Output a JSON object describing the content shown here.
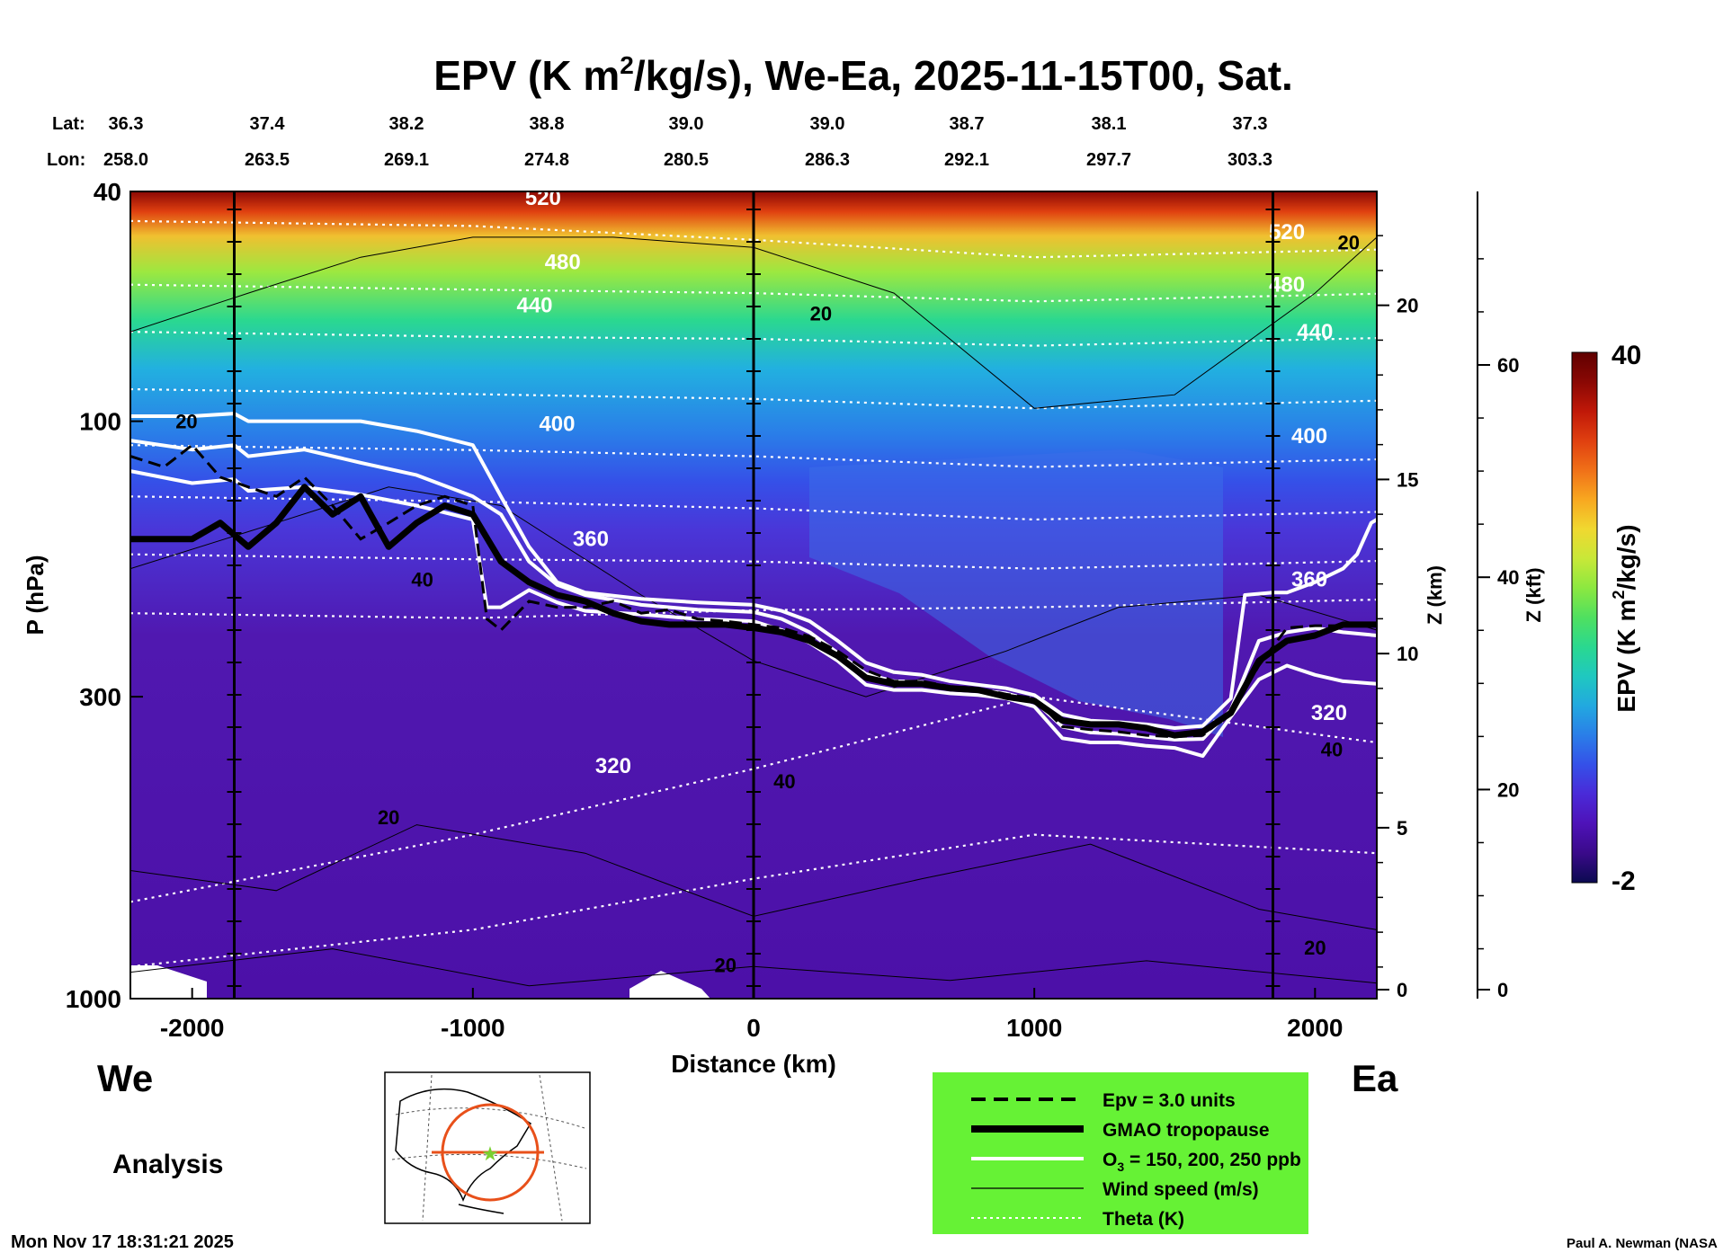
{
  "header": {
    "title_main": "EPV (K m",
    "title_sup": "2",
    "title_rest": "/kg/s), We-Ea, 2025-11-15T00, Sat.",
    "lat_label": "Lat:",
    "lon_label": "Lon:",
    "lat_values": [
      "36.3",
      "37.4",
      "38.2",
      "38.8",
      "39.0",
      "39.0",
      "38.7",
      "38.1",
      "37.3"
    ],
    "lon_values": [
      "258.0",
      "263.5",
      "269.1",
      "274.8",
      "280.5",
      "286.3",
      "292.1",
      "297.7",
      "303.3"
    ]
  },
  "footer": {
    "west_label": "We",
    "east_label": "Ea",
    "analysis_label": "Analysis",
    "timestamp": "Mon Nov 17 18:31:21 2025",
    "credit": "Paul A. Newman (NASA"
  },
  "legend": {
    "items": [
      {
        "label": "Epv = 3.0 units",
        "style": "dashed",
        "color": "#000000"
      },
      {
        "label": "GMAO tropopause",
        "style": "thick",
        "color": "#000000"
      },
      {
        "label": "O",
        "label_sub": "3",
        "label_rest": " = 150, 200, 250 ppb",
        "style": "white",
        "color": "#ffffff"
      },
      {
        "label": "Wind speed (m/s)",
        "style": "thin",
        "color": "#000000"
      },
      {
        "label": "Theta (K)",
        "style": "dotted",
        "color": "#ffffff"
      }
    ],
    "background": "#66f235"
  },
  "colorbar": {
    "label_main": "EPV (K m",
    "label_sup": "2",
    "label_rest": "/kg/s)",
    "max_label": "40",
    "min_label": "-2",
    "colors": [
      "#0b0a50",
      "#3a0a8a",
      "#4e12b8",
      "#4a2ad8",
      "#3550e8",
      "#2a7ee8",
      "#22a8e0",
      "#1fc8c0",
      "#2ad890",
      "#4fe060",
      "#8ce840",
      "#c8e838",
      "#f0d830",
      "#f8a820",
      "#f07018",
      "#e04010",
      "#c01808",
      "#8a0804",
      "#600000"
    ]
  },
  "chart_data": {
    "type": "heatmap",
    "title": "EPV (K m2/kg/s), We-Ea, 2025-11-15T00, Sat.",
    "xlabel": "Distance (km)",
    "ylabel": "P (hPa)",
    "y2label": "Z (km)",
    "y3label": "Z (kft)",
    "xlim": [
      -2220,
      2220
    ],
    "ylim": [
      1000,
      40
    ],
    "y_scale": "log",
    "x_ticks": [
      -2000,
      -1000,
      0,
      1000,
      2000
    ],
    "x_tick_labels": [
      "-2000",
      "-1000",
      "0",
      "1000",
      "2000"
    ],
    "y_ticks": [
      40,
      100,
      300,
      1000
    ],
    "y_tick_labels": [
      "40",
      "100",
      "300",
      "1000"
    ],
    "z_km_ticks": [
      0,
      5,
      10,
      15,
      20
    ],
    "z_km_tick_labels": [
      "0",
      "5",
      "10",
      "15",
      "20"
    ],
    "z_kft_ticks": [
      0,
      20,
      40,
      60
    ],
    "z_kft_tick_labels": [
      "0",
      "20",
      "40",
      "60"
    ],
    "colorbar_range": [
      -2,
      40
    ],
    "section_lines_km": [
      -1850,
      0,
      1850
    ],
    "tropopause": {
      "name": "GMAO tropopause",
      "x": [
        -2220,
        -2000,
        -1900,
        -1800,
        -1700,
        -1600,
        -1500,
        -1400,
        -1300,
        -1200,
        -1100,
        -1000,
        -900,
        -800,
        -700,
        -600,
        -500,
        -400,
        -300,
        -200,
        -100,
        0,
        100,
        200,
        300,
        400,
        500,
        600,
        700,
        800,
        900,
        1000,
        1100,
        1200,
        1300,
        1400,
        1500,
        1600,
        1700,
        1800,
        1900,
        2000,
        2100,
        2220
      ],
      "p": [
        160,
        160,
        150,
        165,
        150,
        130,
        145,
        135,
        165,
        150,
        140,
        145,
        175,
        190,
        200,
        205,
        215,
        222,
        225,
        225,
        225,
        228,
        232,
        240,
        255,
        278,
        285,
        285,
        290,
        292,
        300,
        305,
        330,
        335,
        335,
        340,
        350,
        345,
        320,
        260,
        240,
        235,
        225,
        225
      ]
    },
    "epv_3_units": {
      "name": "Epv = 3.0 units",
      "x": [
        -2220,
        -2100,
        -2000,
        -1900,
        -1800,
        -1700,
        -1600,
        -1500,
        -1400,
        -1300,
        -1200,
        -1100,
        -1000,
        -950,
        -900,
        -800,
        -700,
        -600,
        -500,
        -400,
        -300,
        -200,
        -100,
        0,
        100,
        200,
        300,
        400,
        500,
        600,
        700,
        800,
        900,
        1000,
        1100,
        1200,
        1300,
        1400,
        1500,
        1600,
        1700,
        1800,
        1900,
        2000,
        2100,
        2220
      ],
      "p": [
        115,
        120,
        110,
        125,
        130,
        135,
        125,
        140,
        160,
        150,
        140,
        135,
        140,
        220,
        230,
        205,
        210,
        210,
        205,
        215,
        212,
        220,
        222,
        225,
        228,
        236,
        250,
        270,
        282,
        282,
        288,
        290,
        297,
        302,
        338,
        342,
        345,
        350,
        352,
        350,
        320,
        265,
        228,
        226,
        226,
        226
      ]
    },
    "ozone_150_ppb": {
      "name": "O3 = 150 ppb",
      "x": [
        -2220,
        -2000,
        -1850,
        -1800,
        -1600,
        -1400,
        -1200,
        -1000,
        -900,
        -800,
        -700,
        -600,
        -400,
        -200,
        0,
        100,
        200,
        300,
        400,
        500,
        600,
        700,
        800,
        900,
        1000,
        1100,
        1200,
        1300,
        1400,
        1500,
        1600,
        1700,
        1750,
        1850,
        1900,
        2000,
        2100,
        2150,
        2200,
        2220
      ],
      "p": [
        98,
        98,
        97,
        100,
        100,
        100,
        104,
        110,
        135,
        165,
        190,
        198,
        203,
        206,
        208,
        213,
        222,
        240,
        262,
        272,
        275,
        282,
        286,
        290,
        298,
        322,
        330,
        332,
        335,
        340,
        337,
        302,
        200,
        198,
        198,
        190,
        180,
        170,
        150,
        148
      ]
    },
    "ozone_200_ppb": {
      "name": "O3 = 200 ppb",
      "x": [
        -2220,
        -2000,
        -1850,
        -1800,
        -1600,
        -1400,
        -1200,
        -1000,
        -900,
        -800,
        -700,
        -600,
        -400,
        -200,
        0,
        100,
        200,
        300,
        400,
        500,
        600,
        700,
        800,
        900,
        1000,
        1100,
        1200,
        1300,
        1400,
        1500,
        1600,
        1700,
        1800,
        1900,
        2000,
        2100,
        2220
      ],
      "p": [
        108,
        112,
        110,
        115,
        112,
        118,
        124,
        135,
        145,
        175,
        192,
        200,
        208,
        212,
        214,
        220,
        232,
        252,
        274,
        282,
        283,
        290,
        292,
        296,
        305,
        338,
        346,
        348,
        352,
        356,
        355,
        316,
        240,
        232,
        228,
        232,
        235
      ]
    },
    "ozone_250_ppb": {
      "name": "O3 = 250 ppb",
      "x": [
        -2220,
        -2000,
        -1850,
        -1800,
        -1600,
        -1400,
        -1200,
        -1000,
        -950,
        -900,
        -800,
        -700,
        -600,
        -400,
        -200,
        0,
        100,
        200,
        300,
        400,
        500,
        600,
        700,
        800,
        900,
        1000,
        1100,
        1200,
        1300,
        1400,
        1500,
        1600,
        1700,
        1800,
        1900,
        2000,
        2100,
        2220
      ],
      "p": [
        122,
        128,
        126,
        132,
        130,
        134,
        140,
        148,
        210,
        210,
        196,
        206,
        213,
        216,
        220,
        222,
        230,
        242,
        260,
        286,
        292,
        292,
        296,
        298,
        302,
        312,
        354,
        360,
        360,
        365,
        368,
        380,
        325,
        280,
        265,
        275,
        282,
        285
      ]
    },
    "theta_labels": [
      {
        "value": "520",
        "x": -750,
        "p": 41
      },
      {
        "value": "480",
        "x": -680,
        "p": 53
      },
      {
        "value": "440",
        "x": -780,
        "p": 63
      },
      {
        "value": "400",
        "x": -700,
        "p": 101
      },
      {
        "value": "360",
        "x": -580,
        "p": 160
      },
      {
        "value": "320",
        "x": -500,
        "p": 395
      },
      {
        "value": "520",
        "x": 1900,
        "p": 47
      },
      {
        "value": "480",
        "x": 1900,
        "p": 58
      },
      {
        "value": "440",
        "x": 2000,
        "p": 70
      },
      {
        "value": "400",
        "x": 1980,
        "p": 106
      },
      {
        "value": "360",
        "x": 1980,
        "p": 188
      },
      {
        "value": "320",
        "x": 2050,
        "p": 320
      }
    ],
    "wind_labels": [
      {
        "value": "20",
        "x": -2020,
        "p": 100
      },
      {
        "value": "40",
        "x": -1180,
        "p": 188
      },
      {
        "value": "20",
        "x": 240,
        "p": 65
      },
      {
        "value": "40",
        "x": 110,
        "p": 420
      },
      {
        "value": "20",
        "x": -1300,
        "p": 485
      },
      {
        "value": "20",
        "x": -100,
        "p": 875
      },
      {
        "value": "20",
        "x": 2120,
        "p": 49
      },
      {
        "value": "40",
        "x": 2060,
        "p": 370
      },
      {
        "value": "20",
        "x": 2000,
        "p": 815
      }
    ]
  }
}
